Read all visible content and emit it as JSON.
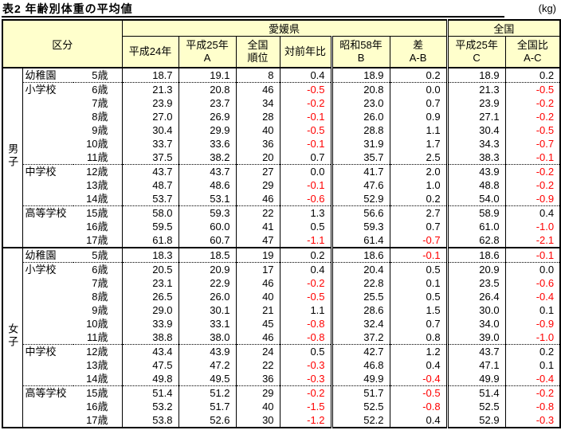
{
  "title": "表2 年齢別体重の平均値",
  "unit": "(kg)",
  "colors": {
    "header_bg": "#ffffcc",
    "negative_value": "#ff0000",
    "border": "#000000",
    "background": "#ffffff"
  },
  "header": {
    "kubun": "区分",
    "groups": [
      {
        "label": "愛媛県"
      },
      {
        "label": "全国"
      }
    ],
    "cols": [
      {
        "l1": "平成24年",
        "l2": ""
      },
      {
        "l1": "平成25年",
        "l2": "A"
      },
      {
        "l1": "全国",
        "l2": "順位"
      },
      {
        "l1": "対前年比",
        "l2": ""
      },
      {
        "l1": "昭和58年",
        "l2": "B"
      },
      {
        "l1": "差",
        "l2": "A-B"
      },
      {
        "l1": "平成25年",
        "l2": "C"
      },
      {
        "l1": "全国比",
        "l2": "A-C"
      }
    ]
  },
  "chart_data": {
    "type": "table",
    "title": "表2 年齢別体重の平均値",
    "unit": "(kg)",
    "column_groups": [
      {
        "label": "区分",
        "span": 3
      },
      {
        "label": "愛媛県",
        "span": 6
      },
      {
        "label": "全国",
        "span": 2
      }
    ],
    "columns": [
      "平成24年",
      "平成25年 A",
      "全国順位",
      "対前年比",
      "昭和58年 B",
      "差 A-B",
      "平成25年 C",
      "全国比 A-C"
    ],
    "sections": [
      {
        "gender": "男子",
        "rows": [
          {
            "school": "幼稚園",
            "age": "5歳",
            "values": [
              "18.7",
              "19.1",
              "8",
              "0.4",
              "18.9",
              "0.2",
              "18.9",
              "0.2"
            ]
          },
          {
            "school": "小学校",
            "age": "6歳",
            "values": [
              "21.3",
              "20.8",
              "46",
              "-0.5",
              "20.8",
              "0.0",
              "21.3",
              "-0.5"
            ]
          },
          {
            "school": "",
            "age": "7歳",
            "values": [
              "23.9",
              "23.7",
              "34",
              "-0.2",
              "23.0",
              "0.7",
              "23.9",
              "-0.2"
            ]
          },
          {
            "school": "",
            "age": "8歳",
            "values": [
              "27.0",
              "26.9",
              "28",
              "-0.1",
              "26.0",
              "0.9",
              "27.1",
              "-0.2"
            ]
          },
          {
            "school": "",
            "age": "9歳",
            "values": [
              "30.4",
              "29.9",
              "40",
              "-0.5",
              "28.8",
              "1.1",
              "30.4",
              "-0.5"
            ]
          },
          {
            "school": "",
            "age": "10歳",
            "values": [
              "33.7",
              "33.6",
              "36",
              "-0.1",
              "31.9",
              "1.7",
              "34.3",
              "-0.7"
            ]
          },
          {
            "school": "",
            "age": "11歳",
            "values": [
              "37.5",
              "38.2",
              "20",
              "0.7",
              "35.7",
              "2.5",
              "38.3",
              "-0.1"
            ]
          },
          {
            "school": "中学校",
            "age": "12歳",
            "values": [
              "43.7",
              "43.7",
              "27",
              "0.0",
              "41.7",
              "2.0",
              "43.9",
              "-0.2"
            ]
          },
          {
            "school": "",
            "age": "13歳",
            "values": [
              "48.7",
              "48.6",
              "29",
              "-0.1",
              "47.6",
              "1.0",
              "48.8",
              "-0.2"
            ]
          },
          {
            "school": "",
            "age": "14歳",
            "values": [
              "53.7",
              "53.1",
              "46",
              "-0.6",
              "52.9",
              "0.2",
              "54.0",
              "-0.9"
            ]
          },
          {
            "school": "高等学校",
            "age": "15歳",
            "values": [
              "58.0",
              "59.3",
              "22",
              "1.3",
              "56.6",
              "2.7",
              "58.9",
              "0.4"
            ]
          },
          {
            "school": "",
            "age": "16歳",
            "values": [
              "59.5",
              "60.0",
              "41",
              "0.5",
              "59.3",
              "0.7",
              "61.0",
              "-1.0"
            ]
          },
          {
            "school": "",
            "age": "17歳",
            "values": [
              "61.8",
              "60.7",
              "47",
              "-1.1",
              "61.4",
              "-0.7",
              "62.8",
              "-2.1"
            ]
          }
        ]
      },
      {
        "gender": "女子",
        "rows": [
          {
            "school": "幼稚園",
            "age": "5歳",
            "values": [
              "18.3",
              "18.5",
              "19",
              "0.2",
              "18.6",
              "-0.1",
              "18.6",
              "-0.1"
            ]
          },
          {
            "school": "小学校",
            "age": "6歳",
            "values": [
              "20.5",
              "20.9",
              "17",
              "0.4",
              "20.4",
              "0.5",
              "20.9",
              "0.0"
            ]
          },
          {
            "school": "",
            "age": "7歳",
            "values": [
              "23.1",
              "22.9",
              "46",
              "-0.2",
              "22.8",
              "0.1",
              "23.5",
              "-0.6"
            ]
          },
          {
            "school": "",
            "age": "8歳",
            "values": [
              "26.5",
              "26.0",
              "40",
              "-0.5",
              "25.5",
              "0.5",
              "26.4",
              "-0.4"
            ]
          },
          {
            "school": "",
            "age": "9歳",
            "values": [
              "29.0",
              "30.1",
              "21",
              "1.1",
              "28.6",
              "1.5",
              "30.0",
              "0.1"
            ]
          },
          {
            "school": "",
            "age": "10歳",
            "values": [
              "33.9",
              "33.1",
              "45",
              "-0.8",
              "32.4",
              "0.7",
              "34.0",
              "-0.9"
            ]
          },
          {
            "school": "",
            "age": "11歳",
            "values": [
              "38.8",
              "38.0",
              "46",
              "-0.8",
              "37.2",
              "0.8",
              "39.0",
              "-1.0"
            ]
          },
          {
            "school": "中学校",
            "age": "12歳",
            "values": [
              "43.4",
              "43.9",
              "24",
              "0.5",
              "42.7",
              "1.2",
              "43.7",
              "0.2"
            ]
          },
          {
            "school": "",
            "age": "13歳",
            "values": [
              "47.5",
              "47.2",
              "22",
              "-0.3",
              "46.8",
              "0.4",
              "47.1",
              "0.1"
            ]
          },
          {
            "school": "",
            "age": "14歳",
            "values": [
              "49.8",
              "49.5",
              "36",
              "-0.3",
              "49.9",
              "-0.4",
              "49.9",
              "-0.4"
            ]
          },
          {
            "school": "高等学校",
            "age": "15歳",
            "values": [
              "51.4",
              "51.2",
              "29",
              "-0.2",
              "51.7",
              "-0.5",
              "51.4",
              "-0.2"
            ]
          },
          {
            "school": "",
            "age": "16歳",
            "values": [
              "53.2",
              "51.7",
              "40",
              "-1.5",
              "52.5",
              "-0.8",
              "52.5",
              "-0.8"
            ]
          },
          {
            "school": "",
            "age": "17歳",
            "values": [
              "53.8",
              "52.6",
              "30",
              "-1.2",
              "52.2",
              "0.4",
              "52.9",
              "-0.3"
            ]
          }
        ]
      }
    ]
  }
}
